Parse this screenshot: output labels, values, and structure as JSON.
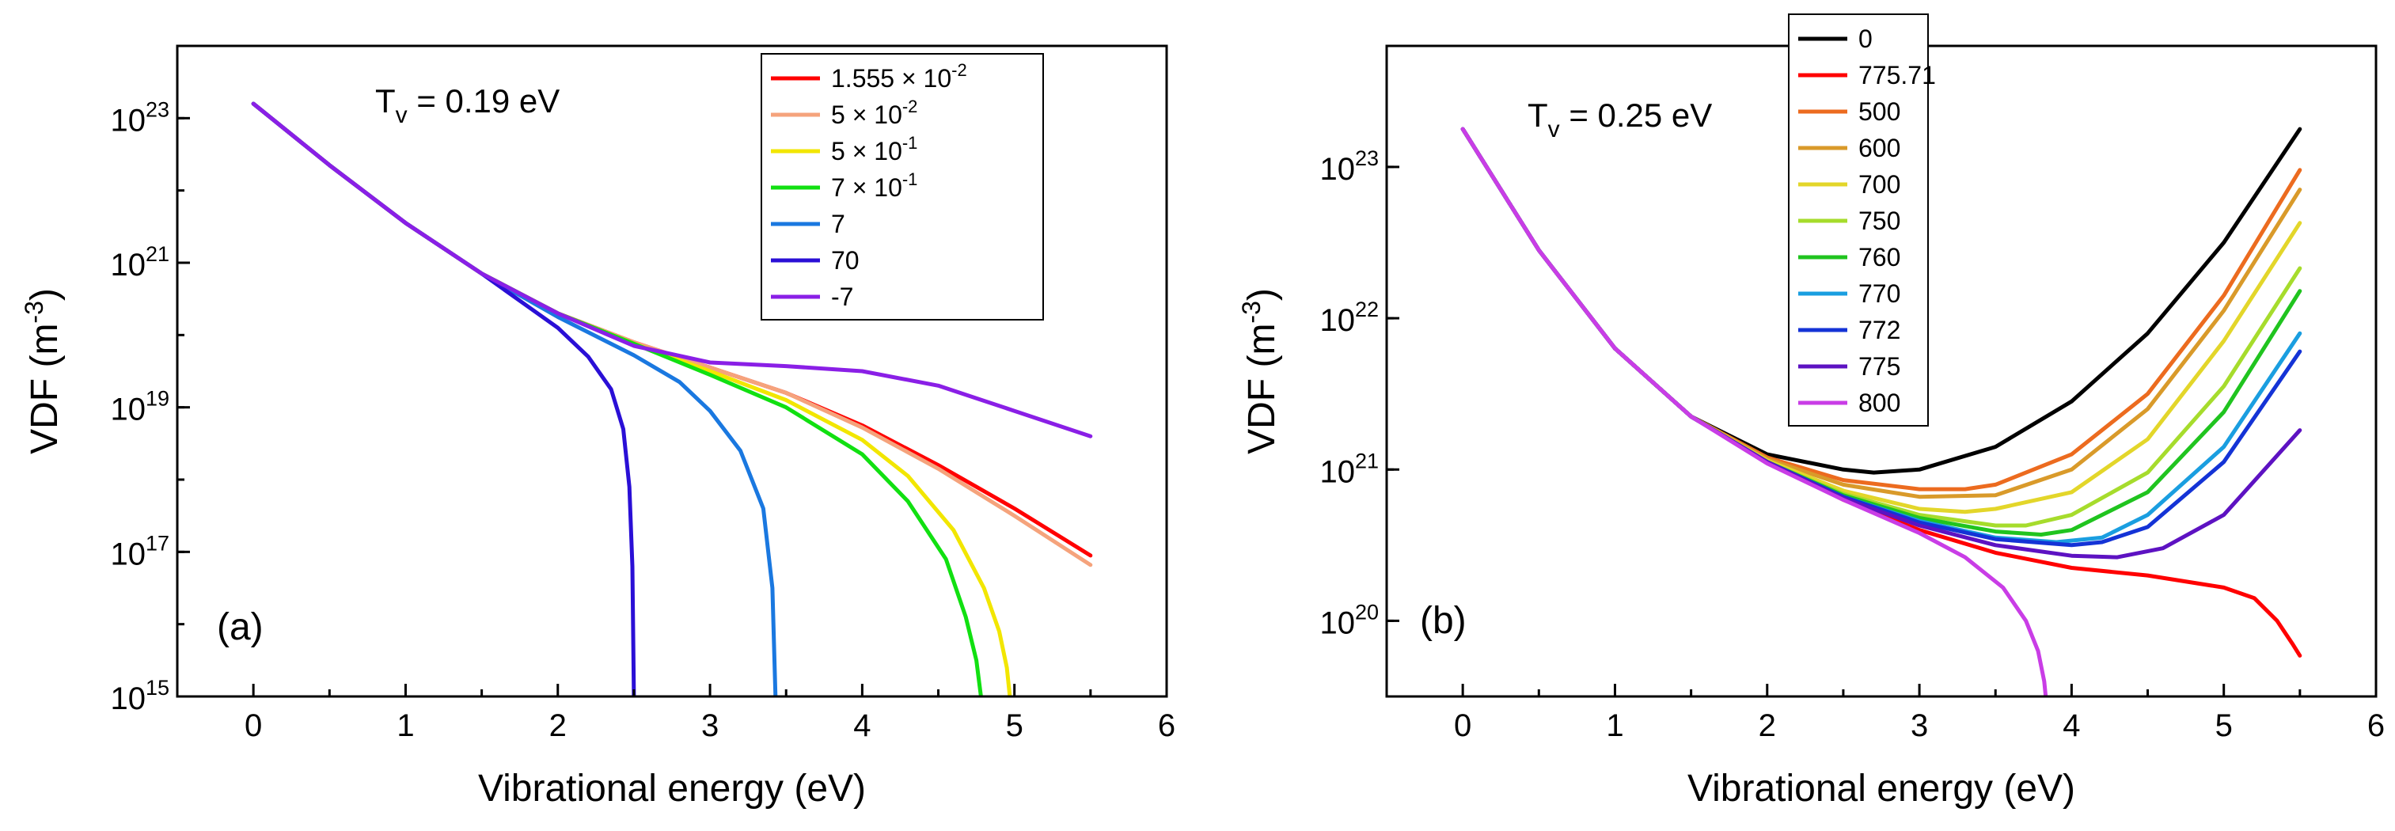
{
  "chart_data": [
    {
      "type": "line",
      "panel_label": "(a)",
      "annotation": {
        "main": "T",
        "sub": "v",
        "rest": " = 0.19 eV"
      },
      "xlabel": "Vibrational energy (eV)",
      "ylabel": {
        "main": "VDF (m",
        "sup": "-3",
        "close": ")"
      },
      "xlim": [
        -0.5,
        6
      ],
      "ylim_log10": [
        15,
        24
      ],
      "xticks": [
        "0",
        "1",
        "2",
        "3",
        "4",
        "5",
        "6"
      ],
      "yticks": [
        {
          "base": "10",
          "exp": "15"
        },
        {
          "base": "10",
          "exp": "17"
        },
        {
          "base": "10",
          "exp": "19"
        },
        {
          "base": "10",
          "exp": "21"
        },
        {
          "base": "10",
          "exp": "23"
        }
      ],
      "legend_placement": "top-right",
      "series": [
        {
          "name": {
            "main": "1.555 × 10",
            "sup": "-2"
          },
          "color": "#ff0000",
          "x": [
            0,
            0.5,
            1,
            1.5,
            2,
            2.5,
            3,
            3.5,
            4,
            4.5,
            5,
            5.5
          ],
          "log10_y": [
            23.2,
            22.35,
            21.55,
            20.85,
            20.3,
            19.9,
            19.55,
            19.2,
            18.75,
            18.2,
            17.6,
            16.95
          ]
        },
        {
          "name": {
            "main": "5 × 10",
            "sup": "-2"
          },
          "color": "#f5a37c",
          "x": [
            0,
            0.5,
            1,
            1.5,
            2,
            2.5,
            3,
            3.5,
            4,
            4.5,
            5,
            5.5
          ],
          "log10_y": [
            23.2,
            22.35,
            21.55,
            20.85,
            20.3,
            19.9,
            19.55,
            19.2,
            18.72,
            18.15,
            17.5,
            16.82
          ]
        },
        {
          "name": {
            "main": "5 × 10",
            "sup": "-1"
          },
          "color": "#f2e600",
          "x": [
            0,
            0.5,
            1,
            1.5,
            2,
            2.5,
            3,
            3.5,
            4,
            4.3,
            4.6,
            4.8,
            4.9,
            4.95,
            4.97
          ],
          "log10_y": [
            23.2,
            22.35,
            21.55,
            20.85,
            20.3,
            19.88,
            19.5,
            19.1,
            18.55,
            18.05,
            17.3,
            16.5,
            15.9,
            15.4,
            15.0
          ]
        },
        {
          "name": {
            "main": "7 × 10",
            "sup": "-1"
          },
          "color": "#11e011",
          "x": [
            0,
            0.5,
            1,
            1.5,
            2,
            2.5,
            3,
            3.5,
            4,
            4.3,
            4.55,
            4.68,
            4.75,
            4.78
          ],
          "log10_y": [
            23.2,
            22.35,
            21.55,
            20.85,
            20.3,
            19.88,
            19.45,
            19.0,
            18.35,
            17.7,
            16.9,
            16.1,
            15.5,
            15.0
          ]
        },
        {
          "name": {
            "main": "7"
          },
          "color": "#1a78e0",
          "x": [
            0,
            0.5,
            1,
            1.5,
            2,
            2.5,
            2.8,
            3.0,
            3.2,
            3.35,
            3.41,
            3.43
          ],
          "log10_y": [
            23.2,
            22.35,
            21.55,
            20.85,
            20.25,
            19.72,
            19.35,
            18.95,
            18.4,
            17.6,
            16.5,
            15.0
          ]
        },
        {
          "name": {
            "main": "70"
          },
          "color": "#2a0fd6",
          "x": [
            0,
            0.5,
            1,
            1.5,
            2,
            2.2,
            2.35,
            2.43,
            2.47,
            2.49,
            2.5
          ],
          "log10_y": [
            23.2,
            22.35,
            21.55,
            20.85,
            20.1,
            19.7,
            19.25,
            18.7,
            17.9,
            16.8,
            15.0
          ]
        },
        {
          "name": {
            "main": "-7"
          },
          "color": "#8a1fe6",
          "x": [
            0,
            0.5,
            1,
            1.5,
            2,
            2.5,
            3,
            3.5,
            4,
            4.5,
            5,
            5.5
          ],
          "log10_y": [
            23.2,
            22.35,
            21.55,
            20.85,
            20.3,
            19.85,
            19.62,
            19.57,
            19.5,
            19.3,
            18.95,
            18.6
          ]
        }
      ]
    },
    {
      "type": "line",
      "panel_label": "(b)",
      "annotation": {
        "main": "T",
        "sub": "v",
        "rest": " = 0.25 eV"
      },
      "xlabel": "Vibrational energy (eV)",
      "ylabel": {
        "main": "VDF (m",
        "sup": "-3",
        "close": ")"
      },
      "xlim": [
        -0.5,
        6
      ],
      "ylim_log10": [
        19.5,
        23.8
      ],
      "xticks": [
        "0",
        "1",
        "2",
        "3",
        "4",
        "5",
        "6"
      ],
      "yticks": [
        {
          "base": "10",
          "exp": "20"
        },
        {
          "base": "10",
          "exp": "21"
        },
        {
          "base": "10",
          "exp": "22"
        },
        {
          "base": "10",
          "exp": "23"
        }
      ],
      "legend_placement": "top-center",
      "series": [
        {
          "name": {
            "main": "0"
          },
          "color": "#000000",
          "x": [
            0,
            0.5,
            1,
            1.5,
            2,
            2.5,
            2.7,
            3,
            3.5,
            4,
            4.5,
            5,
            5.5
          ],
          "log10_y": [
            23.25,
            22.45,
            21.8,
            21.35,
            21.1,
            21.0,
            20.98,
            21.0,
            21.15,
            21.45,
            21.9,
            22.5,
            23.25
          ]
        },
        {
          "name": {
            "main": "775.71"
          },
          "color": "#ff0000",
          "x": [
            0,
            0.5,
            1,
            1.5,
            2,
            2.5,
            3,
            3.5,
            4,
            4.5,
            5,
            5.2,
            5.35,
            5.45,
            5.5
          ],
          "log10_y": [
            23.25,
            22.45,
            21.8,
            21.35,
            21.05,
            20.8,
            20.6,
            20.45,
            20.35,
            20.3,
            20.22,
            20.15,
            20.0,
            19.85,
            19.77
          ]
        },
        {
          "name": {
            "main": "500"
          },
          "color": "#ec6b1f",
          "x": [
            0,
            0.5,
            1,
            1.5,
            2,
            2.5,
            3,
            3.3,
            3.5,
            4,
            4.5,
            5,
            5.5
          ],
          "log10_y": [
            23.25,
            22.45,
            21.8,
            21.35,
            21.08,
            20.93,
            20.87,
            20.87,
            20.9,
            21.1,
            21.5,
            22.15,
            22.98
          ]
        },
        {
          "name": {
            "main": "600"
          },
          "color": "#d99a2a",
          "x": [
            0,
            0.5,
            1,
            1.5,
            2,
            2.5,
            3,
            3.5,
            4,
            4.5,
            5,
            5.5
          ],
          "log10_y": [
            23.25,
            22.45,
            21.8,
            21.35,
            21.07,
            20.9,
            20.82,
            20.83,
            21.0,
            21.4,
            22.05,
            22.85
          ]
        },
        {
          "name": {
            "main": "700"
          },
          "color": "#e3d62a",
          "x": [
            0,
            0.5,
            1,
            1.5,
            2,
            2.5,
            3,
            3.3,
            3.5,
            4,
            4.5,
            5,
            5.5
          ],
          "log10_y": [
            23.25,
            22.45,
            21.8,
            21.35,
            21.06,
            20.86,
            20.74,
            20.72,
            20.74,
            20.85,
            21.2,
            21.85,
            22.63
          ]
        },
        {
          "name": {
            "main": "750"
          },
          "color": "#a6dc2c",
          "x": [
            0,
            0.5,
            1,
            1.5,
            2,
            2.5,
            3,
            3.5,
            3.7,
            4,
            4.5,
            5,
            5.5
          ],
          "log10_y": [
            23.25,
            22.45,
            21.8,
            21.35,
            21.05,
            20.84,
            20.7,
            20.63,
            20.63,
            20.7,
            20.98,
            21.55,
            22.33
          ]
        },
        {
          "name": {
            "main": "760"
          },
          "color": "#20c41f",
          "x": [
            0,
            0.5,
            1,
            1.5,
            2,
            2.5,
            3,
            3.5,
            3.8,
            4,
            4.5,
            5,
            5.5
          ],
          "log10_y": [
            23.25,
            22.45,
            21.8,
            21.35,
            21.05,
            20.83,
            20.68,
            20.59,
            20.57,
            20.6,
            20.85,
            21.38,
            22.18
          ]
        },
        {
          "name": {
            "main": "770"
          },
          "color": "#1a9ee0",
          "x": [
            0,
            0.5,
            1,
            1.5,
            2,
            2.5,
            3,
            3.5,
            3.9,
            4.2,
            4.5,
            5,
            5.5
          ],
          "log10_y": [
            23.25,
            22.45,
            21.8,
            21.35,
            21.05,
            20.82,
            20.66,
            20.55,
            20.52,
            20.55,
            20.7,
            21.15,
            21.9
          ]
        },
        {
          "name": {
            "main": "772"
          },
          "color": "#1433d6",
          "x": [
            0,
            0.5,
            1,
            1.5,
            2,
            2.5,
            3,
            3.5,
            4,
            4.2,
            4.5,
            5,
            5.5
          ],
          "log10_y": [
            23.25,
            22.45,
            21.8,
            21.35,
            21.05,
            20.82,
            20.65,
            20.54,
            20.5,
            20.52,
            20.62,
            21.05,
            21.78
          ]
        },
        {
          "name": {
            "main": "775"
          },
          "color": "#5d12c2",
          "x": [
            0,
            0.5,
            1,
            1.5,
            2,
            2.5,
            3,
            3.5,
            4,
            4.3,
            4.6,
            5,
            5.5
          ],
          "log10_y": [
            23.25,
            22.45,
            21.8,
            21.35,
            21.05,
            20.81,
            20.63,
            20.5,
            20.43,
            20.42,
            20.48,
            20.7,
            21.26
          ]
        },
        {
          "name": {
            "main": "800"
          },
          "color": "#c93de6",
          "x": [
            0,
            0.5,
            1,
            1.5,
            2,
            2.5,
            3,
            3.3,
            3.55,
            3.7,
            3.78,
            3.82,
            3.83
          ],
          "log10_y": [
            23.25,
            22.45,
            21.8,
            21.35,
            21.04,
            20.8,
            20.58,
            20.42,
            20.22,
            20.0,
            19.8,
            19.6,
            19.5
          ]
        }
      ]
    }
  ]
}
